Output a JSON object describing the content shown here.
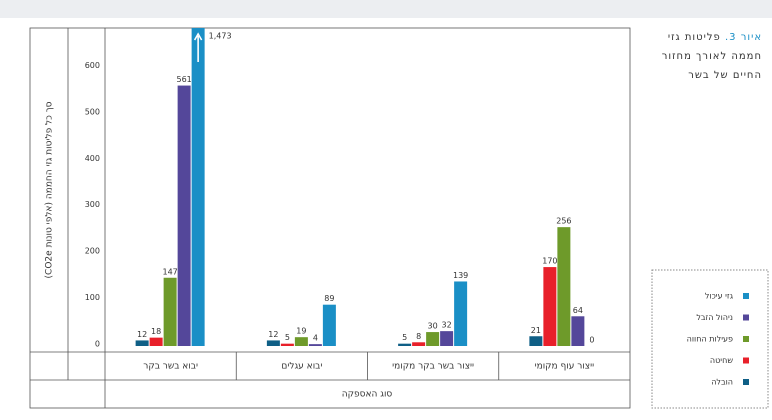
{
  "chart_data": {
    "type": "bar",
    "title_prefix": "איור 3.",
    "title_lines": [
      "פליטות גזי",
      "חממה לאורך מחזור",
      "החיים של בשר"
    ],
    "y_label": "סך כל פליטות גזי החממה (אלפי טונות CO2e)",
    "x_label": "סוג האספקה",
    "categories": [
      "יבוא בשר בקר",
      "יבוא עגלים",
      "ייצור בשר בקר מקומי",
      "ייצור עוף מקומי"
    ],
    "series": [
      {
        "name": "הובלה",
        "color": "#0f5f86",
        "values": [
          12,
          12,
          5,
          21
        ]
      },
      {
        "name": "שחיטה",
        "color": "#e8202a",
        "values": [
          18,
          5,
          8,
          170
        ]
      },
      {
        "name": "פעילות החווה",
        "color": "#6e9a2a",
        "values": [
          147,
          19,
          30,
          256
        ]
      },
      {
        "name": "ניהול הזבל",
        "color": "#54479a",
        "values": [
          561,
          4,
          32,
          64
        ]
      },
      {
        "name": "גזי עיכול",
        "color": "#1a8fc6",
        "values": [
          1473,
          89,
          139,
          0
        ],
        "value_labels": [
          "1,473",
          "89",
          "139",
          "0"
        ]
      }
    ],
    "ylim": [
      0,
      685
    ],
    "yticks": [
      0,
      100,
      200,
      300,
      400,
      500,
      600
    ]
  }
}
